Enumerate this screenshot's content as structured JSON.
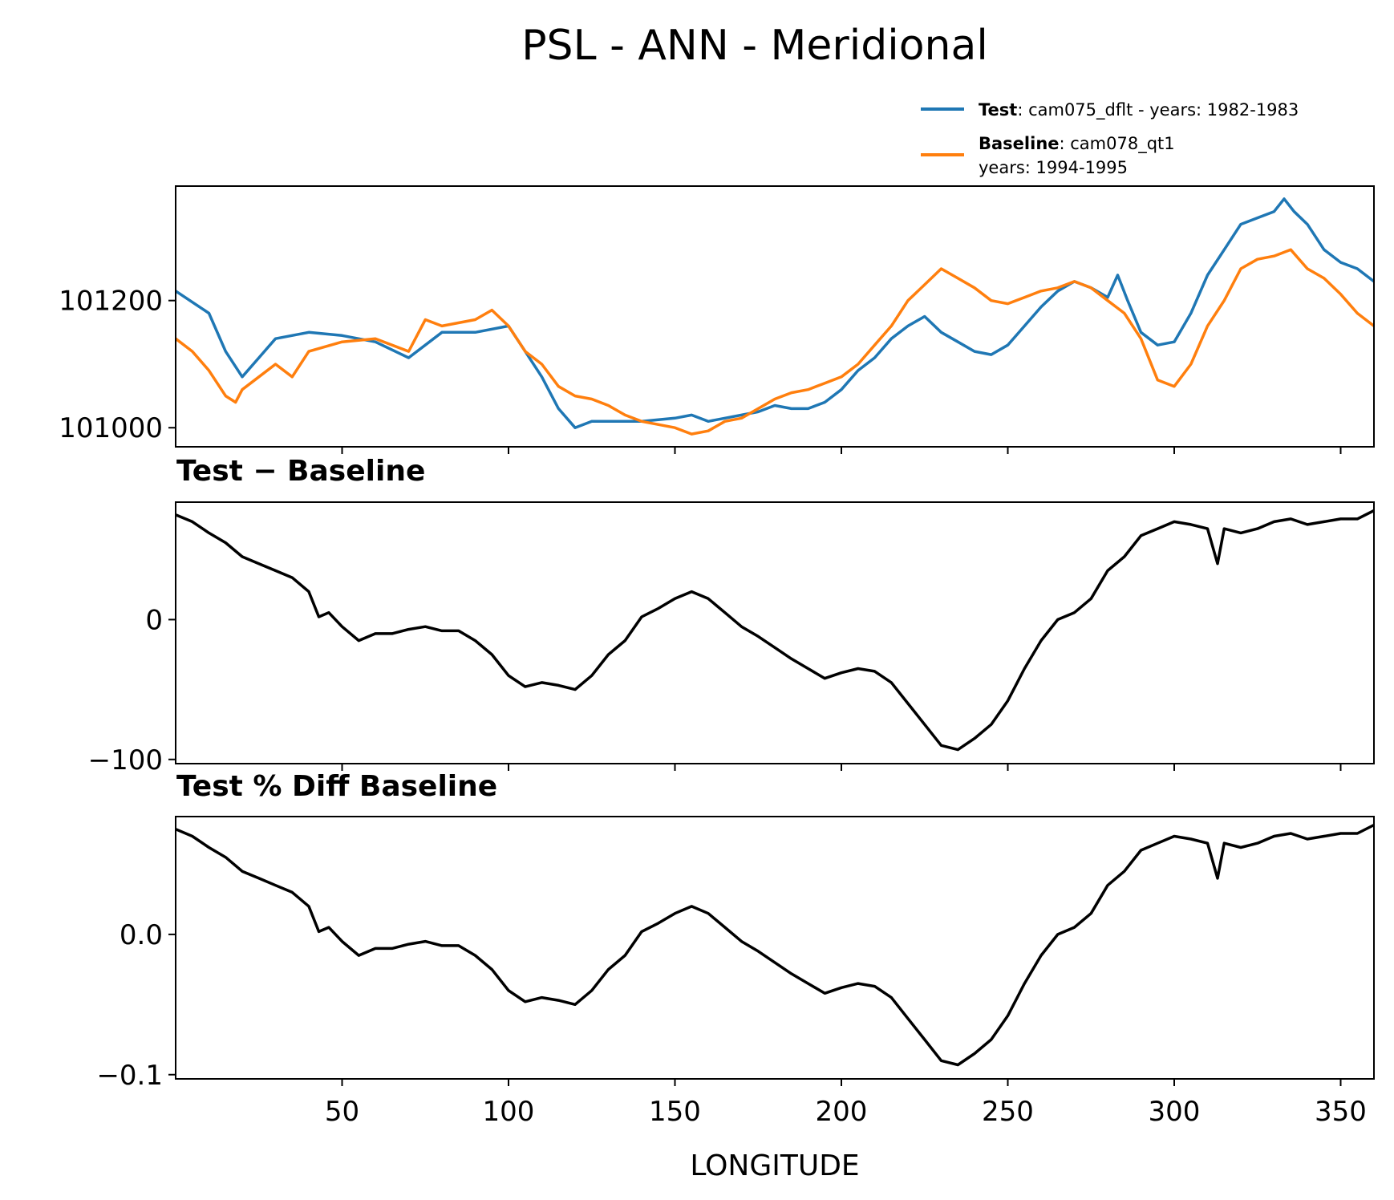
{
  "title": "PSL - ANN - Meridional",
  "legend": [
    {
      "label_bold": "Test",
      "label_rest": ": cam075_dflt - years: 1982-1983",
      "color": "#1f77b4"
    },
    {
      "label_bold": "Baseline",
      "label_rest": ": cam078_qt1",
      "label_line2": "years: 1994-1995",
      "color": "#ff7f0e"
    }
  ],
  "chart_data": [
    {
      "type": "line",
      "title": "",
      "xlabel": "",
      "ylabel": "",
      "xlim": [
        0,
        360
      ],
      "ylim": [
        100970,
        101380
      ],
      "yticks": [
        101000,
        101200
      ],
      "ytick_labels": [
        "101000",
        "101200"
      ],
      "series": [
        {
          "name": "Test",
          "color": "#1f77b4",
          "x": [
            0,
            10,
            15,
            20,
            25,
            30,
            40,
            50,
            60,
            70,
            80,
            90,
            100,
            105,
            110,
            115,
            120,
            125,
            130,
            140,
            150,
            155,
            160,
            165,
            170,
            175,
            180,
            185,
            190,
            195,
            200,
            205,
            210,
            215,
            220,
            225,
            230,
            235,
            240,
            245,
            250,
            255,
            260,
            265,
            270,
            275,
            280,
            283,
            286,
            290,
            295,
            300,
            305,
            310,
            315,
            320,
            325,
            330,
            333,
            336,
            340,
            345,
            350,
            355,
            360
          ],
          "values": [
            101215,
            101180,
            101120,
            101080,
            101110,
            101140,
            101150,
            101145,
            101135,
            101110,
            101150,
            101150,
            101160,
            101120,
            101080,
            101030,
            101000,
            101010,
            101010,
            101010,
            101015,
            101020,
            101010,
            101015,
            101020,
            101025,
            101035,
            101030,
            101030,
            101040,
            101060,
            101090,
            101110,
            101140,
            101160,
            101175,
            101150,
            101135,
            101120,
            101115,
            101130,
            101160,
            101190,
            101215,
            101230,
            101220,
            101205,
            101240,
            101200,
            101150,
            101130,
            101135,
            101180,
            101240,
            101280,
            101320,
            101330,
            101340,
            101360,
            101340,
            101320,
            101280,
            101260,
            101250,
            101230
          ]
        },
        {
          "name": "Baseline",
          "color": "#ff7f0e",
          "x": [
            0,
            5,
            10,
            15,
            18,
            20,
            25,
            30,
            35,
            40,
            50,
            60,
            70,
            75,
            80,
            90,
            95,
            100,
            105,
            110,
            115,
            120,
            125,
            130,
            135,
            140,
            150,
            155,
            160,
            165,
            170,
            175,
            180,
            185,
            190,
            195,
            200,
            205,
            210,
            215,
            220,
            225,
            230,
            235,
            240,
            245,
            250,
            255,
            260,
            265,
            270,
            275,
            280,
            285,
            290,
            295,
            300,
            305,
            310,
            315,
            320,
            325,
            330,
            335,
            340,
            345,
            350,
            355,
            360
          ],
          "values": [
            101140,
            101120,
            101090,
            101050,
            101040,
            101060,
            101080,
            101100,
            101080,
            101120,
            101135,
            101140,
            101120,
            101170,
            101160,
            101170,
            101185,
            101160,
            101120,
            101100,
            101065,
            101050,
            101045,
            101035,
            101020,
            101010,
            101000,
            100990,
            100995,
            101010,
            101015,
            101030,
            101045,
            101055,
            101060,
            101070,
            101080,
            101100,
            101130,
            101160,
            101200,
            101225,
            101250,
            101235,
            101220,
            101200,
            101195,
            101205,
            101215,
            101220,
            101230,
            101220,
            101200,
            101180,
            101140,
            101075,
            101065,
            101100,
            101160,
            101200,
            101250,
            101265,
            101270,
            101280,
            101250,
            101235,
            101210,
            101180,
            101160
          ]
        }
      ]
    },
    {
      "type": "line",
      "title": "Test − Baseline",
      "xlabel": "",
      "ylabel": "",
      "xlim": [
        0,
        360
      ],
      "ylim": [
        -103,
        84
      ],
      "yticks": [
        -100,
        0
      ],
      "ytick_labels": [
        "−100",
        "0"
      ],
      "series": [
        {
          "name": "Test − Baseline",
          "color": "#000000",
          "x": [
            0,
            5,
            10,
            15,
            20,
            25,
            30,
            35,
            40,
            43,
            46,
            50,
            55,
            60,
            65,
            70,
            75,
            80,
            85,
            90,
            95,
            100,
            105,
            110,
            115,
            120,
            125,
            130,
            135,
            140,
            145,
            150,
            155,
            160,
            165,
            170,
            175,
            180,
            185,
            190,
            195,
            200,
            205,
            210,
            215,
            220,
            225,
            230,
            235,
            240,
            245,
            250,
            255,
            260,
            265,
            270,
            275,
            280,
            285,
            290,
            295,
            300,
            305,
            310,
            313,
            315,
            320,
            325,
            330,
            335,
            340,
            345,
            350,
            355,
            360
          ],
          "values": [
            75,
            70,
            62,
            55,
            45,
            40,
            35,
            30,
            20,
            2,
            5,
            -5,
            -15,
            -10,
            -10,
            -7,
            -5,
            -8,
            -8,
            -15,
            -25,
            -40,
            -48,
            -45,
            -47,
            -50,
            -40,
            -25,
            -15,
            2,
            8,
            15,
            20,
            15,
            5,
            -5,
            -12,
            -20,
            -28,
            -35,
            -42,
            -38,
            -35,
            -37,
            -45,
            -60,
            -75,
            -90,
            -93,
            -85,
            -75,
            -58,
            -35,
            -15,
            0,
            5,
            15,
            35,
            45,
            60,
            65,
            70,
            68,
            65,
            40,
            65,
            62,
            65,
            70,
            72,
            68,
            70,
            72,
            72,
            78
          ]
        }
      ]
    },
    {
      "type": "line",
      "title": "Test % Diff Baseline",
      "xlabel": "LONGITUDE",
      "ylabel": "",
      "xlim": [
        0,
        360
      ],
      "ylim": [
        -0.103,
        0.084
      ],
      "yticks": [
        -0.1,
        0.0
      ],
      "ytick_labels": [
        "−0.1",
        "0.0"
      ],
      "xticks": [
        50,
        100,
        150,
        200,
        250,
        300,
        350
      ],
      "xtick_labels": [
        "50",
        "100",
        "150",
        "200",
        "250",
        "300",
        "350"
      ],
      "series": [
        {
          "name": "Test % Diff Baseline",
          "color": "#000000",
          "x": [
            0,
            5,
            10,
            15,
            20,
            25,
            30,
            35,
            40,
            43,
            46,
            50,
            55,
            60,
            65,
            70,
            75,
            80,
            85,
            90,
            95,
            100,
            105,
            110,
            115,
            120,
            125,
            130,
            135,
            140,
            145,
            150,
            155,
            160,
            165,
            170,
            175,
            180,
            185,
            190,
            195,
            200,
            205,
            210,
            215,
            220,
            225,
            230,
            235,
            240,
            245,
            250,
            255,
            260,
            265,
            270,
            275,
            280,
            285,
            290,
            295,
            300,
            305,
            310,
            313,
            315,
            320,
            325,
            330,
            335,
            340,
            345,
            350,
            355,
            360
          ],
          "values": [
            0.075,
            0.07,
            0.062,
            0.055,
            0.045,
            0.04,
            0.035,
            0.03,
            0.02,
            0.002,
            0.005,
            -0.005,
            -0.015,
            -0.01,
            -0.01,
            -0.007,
            -0.005,
            -0.008,
            -0.008,
            -0.015,
            -0.025,
            -0.04,
            -0.048,
            -0.045,
            -0.047,
            -0.05,
            -0.04,
            -0.025,
            -0.015,
            0.002,
            0.008,
            0.015,
            0.02,
            0.015,
            0.005,
            -0.005,
            -0.012,
            -0.02,
            -0.028,
            -0.035,
            -0.042,
            -0.038,
            -0.035,
            -0.037,
            -0.045,
            -0.06,
            -0.075,
            -0.09,
            -0.093,
            -0.085,
            -0.075,
            -0.058,
            -0.035,
            -0.015,
            0.0,
            0.005,
            0.015,
            0.035,
            0.045,
            0.06,
            0.065,
            0.07,
            0.068,
            0.065,
            0.04,
            0.065,
            0.062,
            0.065,
            0.07,
            0.072,
            0.068,
            0.07,
            0.072,
            0.072,
            0.078
          ]
        }
      ]
    }
  ]
}
